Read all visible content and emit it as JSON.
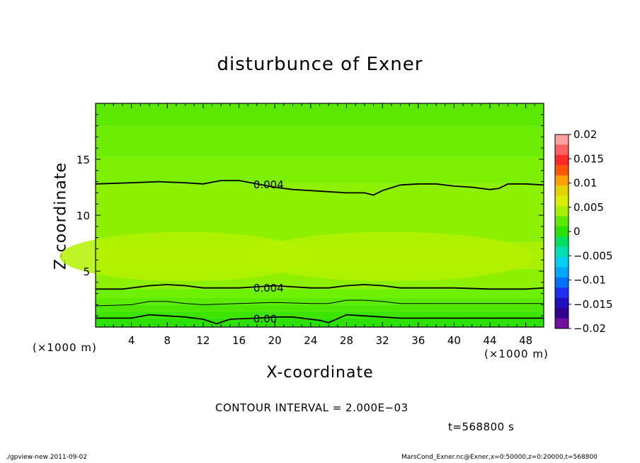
{
  "chart_data": {
    "type": "heatmap",
    "title": "disturbunce of Exner",
    "xlabel": "X-coordinate",
    "ylabel": "Z-coordinate",
    "x_unit": "(×1000 m)",
    "y_unit": "(×1000 m)",
    "xlim": [
      0,
      50
    ],
    "ylim": [
      0,
      20
    ],
    "x_ticks": [
      4,
      8,
      12,
      16,
      20,
      24,
      28,
      32,
      36,
      40,
      44,
      48
    ],
    "y_ticks": [
      5,
      10,
      15
    ],
    "colorbar": {
      "ticks": [
        "0.02",
        "0.015",
        "0.01",
        "0.005",
        "0",
        "−0.005",
        "−0.01",
        "−0.015",
        "−0.02"
      ],
      "colors": [
        "#ffa0a0",
        "#ff6060",
        "#ff2a2a",
        "#ff5800",
        "#ffa000",
        "#e2d200",
        "#d8f000",
        "#a8f000",
        "#60e800",
        "#2ce000",
        "#00e060",
        "#00e0b0",
        "#00d0f0",
        "#00a8ff",
        "#0070ff",
        "#2030f0",
        "#2010c0",
        "#300090",
        "#7010a0"
      ]
    },
    "field": {
      "description_bands_z": [
        {
          "z_from": 0.0,
          "z_to": 0.8,
          "color": "#2ce000"
        },
        {
          "z_from": 0.8,
          "z_to": 1.4,
          "color": "#3ce400"
        },
        {
          "z_from": 1.4,
          "z_to": 2.0,
          "color": "#4ce800"
        },
        {
          "z_from": 2.0,
          "z_to": 2.6,
          "color": "#5cec00"
        },
        {
          "z_from": 2.6,
          "z_to": 3.4,
          "color": "#6cf000"
        },
        {
          "z_from": 3.4,
          "z_to": 5.2,
          "color": "#8cf000"
        },
        {
          "z_from": 5.2,
          "z_to": 7.6,
          "color": "#a8f000"
        },
        {
          "z_from": 7.6,
          "z_to": 12.8,
          "color": "#8cf000"
        },
        {
          "z_from": 12.8,
          "z_to": 15.2,
          "color": "#7cf000"
        },
        {
          "z_from": 15.2,
          "z_to": 18.0,
          "color": "#6cec00"
        },
        {
          "z_from": 18.0,
          "z_to": 20.0,
          "color": "#5ce800"
        }
      ]
    },
    "contours": [
      {
        "label": "0.004",
        "points": [
          [
            0,
            12.8
          ],
          [
            4,
            12.9
          ],
          [
            7,
            13.0
          ],
          [
            10,
            12.9
          ],
          [
            12,
            12.8
          ],
          [
            14,
            13.1
          ],
          [
            16,
            13.1
          ],
          [
            18,
            12.8
          ],
          [
            20,
            12.5
          ],
          [
            22,
            12.3
          ],
          [
            24,
            12.2
          ],
          [
            26,
            12.1
          ],
          [
            28,
            12.0
          ],
          [
            30,
            12.0
          ],
          [
            31,
            11.8
          ],
          [
            32,
            12.2
          ],
          [
            34,
            12.7
          ],
          [
            36,
            12.8
          ],
          [
            38,
            12.8
          ],
          [
            40,
            12.6
          ],
          [
            42,
            12.5
          ],
          [
            44,
            12.3
          ],
          [
            45,
            12.4
          ],
          [
            46,
            12.8
          ],
          [
            48,
            12.8
          ],
          [
            50,
            12.7
          ]
        ]
      },
      {
        "label": "0.004",
        "points": [
          [
            0,
            3.4
          ],
          [
            3,
            3.4
          ],
          [
            6,
            3.7
          ],
          [
            8,
            3.8
          ],
          [
            10,
            3.7
          ],
          [
            12,
            3.5
          ],
          [
            14,
            3.5
          ],
          [
            16,
            3.5
          ],
          [
            18,
            3.6
          ],
          [
            20,
            3.7
          ],
          [
            22,
            3.6
          ],
          [
            24,
            3.5
          ],
          [
            26,
            3.5
          ],
          [
            28,
            3.7
          ],
          [
            30,
            3.8
          ],
          [
            32,
            3.7
          ],
          [
            34,
            3.5
          ],
          [
            36,
            3.5
          ],
          [
            40,
            3.5
          ],
          [
            44,
            3.4
          ],
          [
            48,
            3.4
          ],
          [
            50,
            3.5
          ]
        ]
      },
      {
        "label": "",
        "points": [
          [
            0,
            1.9
          ],
          [
            4,
            2.0
          ],
          [
            6,
            2.3
          ],
          [
            8,
            2.3
          ],
          [
            10,
            2.1
          ],
          [
            12,
            2.0
          ],
          [
            16,
            2.1
          ],
          [
            20,
            2.2
          ],
          [
            24,
            2.1
          ],
          [
            26,
            2.1
          ],
          [
            28,
            2.4
          ],
          [
            30,
            2.4
          ],
          [
            32,
            2.3
          ],
          [
            34,
            2.1
          ],
          [
            40,
            2.1
          ],
          [
            44,
            2.1
          ],
          [
            50,
            2.1
          ]
        ]
      },
      {
        "label": "0.00",
        "points": [
          [
            0,
            0.8
          ],
          [
            4,
            0.8
          ],
          [
            6,
            1.1
          ],
          [
            8,
            1.0
          ],
          [
            10,
            0.9
          ],
          [
            12,
            0.7
          ],
          [
            13.5,
            0.3
          ],
          [
            15,
            0.7
          ],
          [
            18,
            0.8
          ],
          [
            20,
            0.9
          ],
          [
            22,
            0.9
          ],
          [
            25,
            0.6
          ],
          [
            26,
            0.4
          ],
          [
            28,
            1.1
          ],
          [
            30,
            1.0
          ],
          [
            32,
            0.9
          ],
          [
            34,
            0.8
          ],
          [
            40,
            0.8
          ],
          [
            44,
            0.8
          ],
          [
            50,
            0.8
          ]
        ]
      }
    ]
  },
  "annotations": {
    "contour_interval": "CONTOUR INTERVAL = 2.000E−03",
    "time": "t=568800 s",
    "footer_left": "./gpview-new   2011-09-02",
    "footer_right": "MarsCond_Exner.nc@Exner,x=0:50000,z=0:20000,t=568800"
  }
}
